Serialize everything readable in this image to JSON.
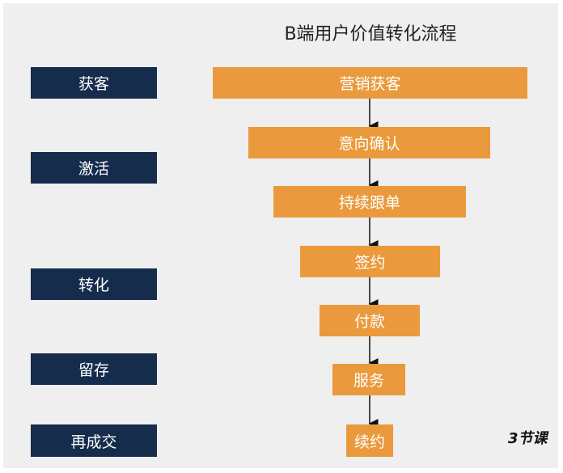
{
  "title": "B端用户价值转化流程",
  "stages": [
    "获客",
    "激活",
    "转化",
    "留存",
    "再成交"
  ],
  "steps": [
    "营销获客",
    "意向确认",
    "持续跟单",
    "签约",
    "付款",
    "服务",
    "续约"
  ],
  "watermark": "3节课"
}
